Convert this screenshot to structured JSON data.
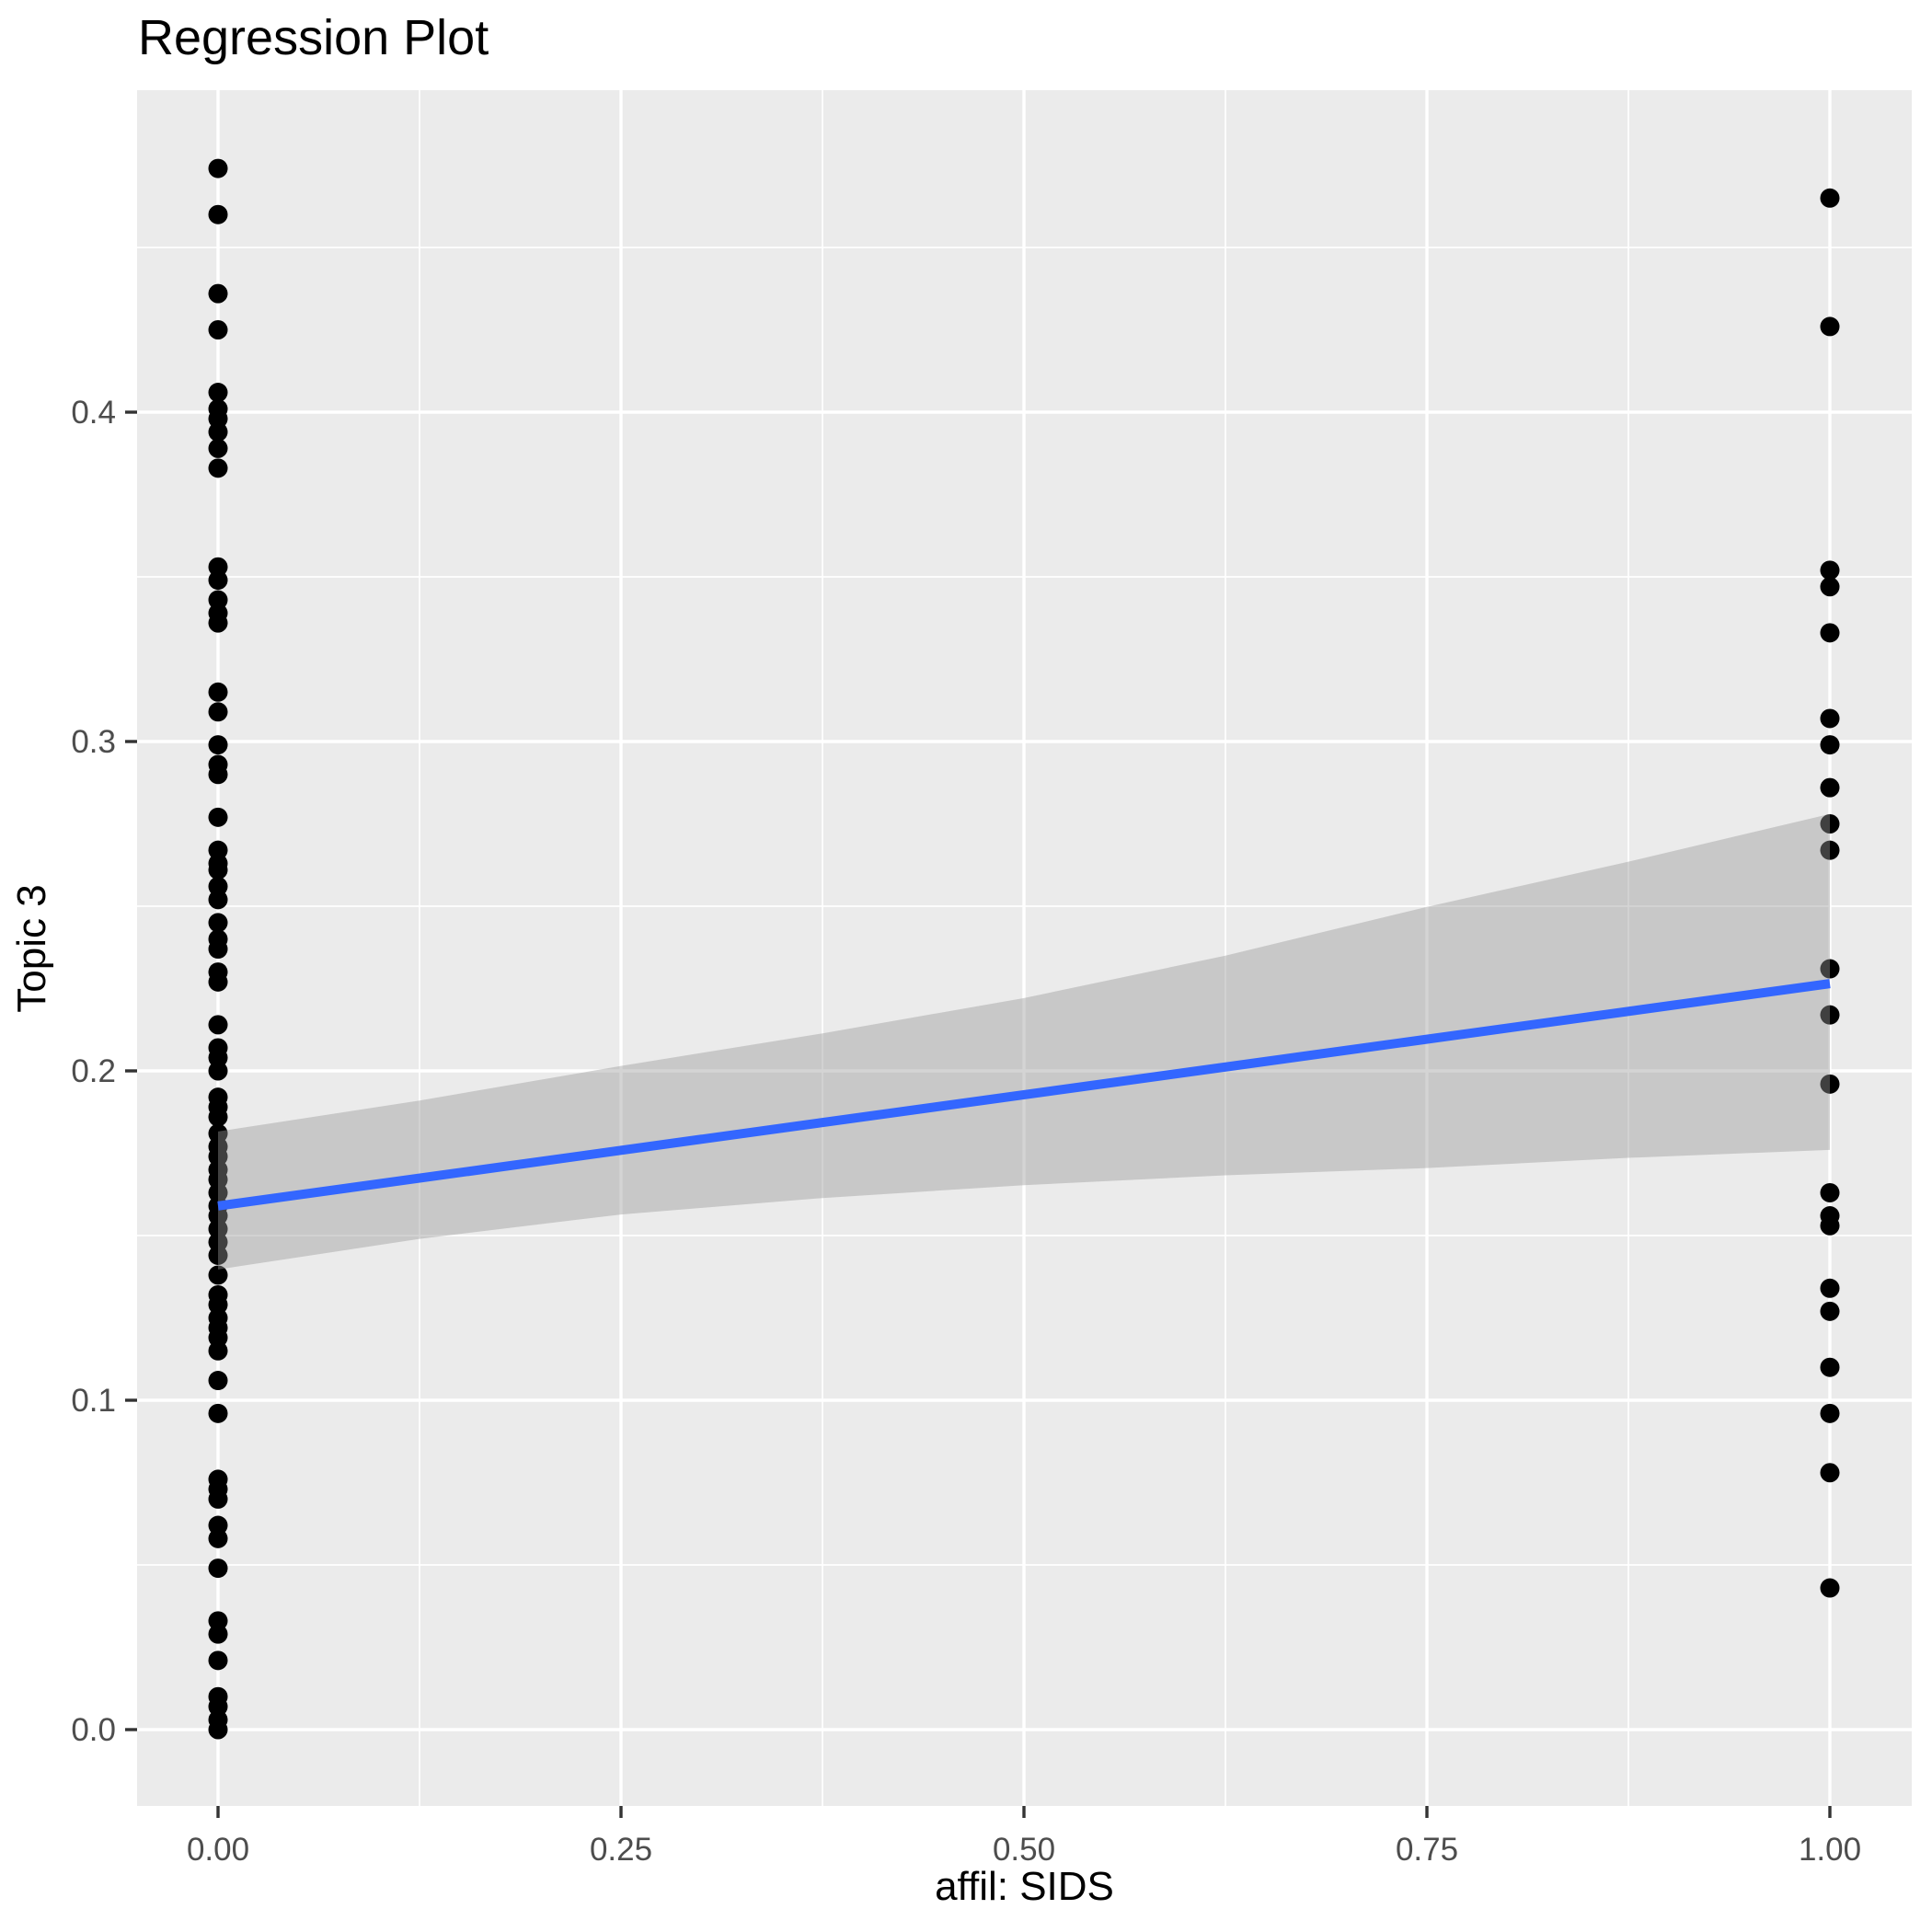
{
  "chart": {
    "title": "Regression Plot",
    "xlabel": "affil: SIDS",
    "ylabel": "Topic 3"
  },
  "chart_data": {
    "type": "scatter",
    "title": "Regression Plot",
    "xlabel": "affil: SIDS",
    "ylabel": "Topic 3",
    "grid": "on",
    "legend_position": "none",
    "xlim": [
      -0.05,
      1.05
    ],
    "ylim": [
      -0.023,
      0.498
    ],
    "x_ticks": [
      {
        "value": 0.0,
        "label": "0.00"
      },
      {
        "value": 0.25,
        "label": "0.25"
      },
      {
        "value": 0.5,
        "label": "0.50"
      },
      {
        "value": 0.75,
        "label": "0.75"
      },
      {
        "value": 1.0,
        "label": "1.00"
      }
    ],
    "y_ticks": [
      {
        "value": 0.0,
        "label": "0.0"
      },
      {
        "value": 0.1,
        "label": "0.1"
      },
      {
        "value": 0.2,
        "label": "0.2"
      },
      {
        "value": 0.3,
        "label": "0.3"
      },
      {
        "value": 0.4,
        "label": "0.4"
      }
    ],
    "x_minor": [
      0.125,
      0.375,
      0.625,
      0.875
    ],
    "y_minor": [
      0.05,
      0.15,
      0.25,
      0.35,
      0.45
    ],
    "series": [
      {
        "name": "observations at affil=0",
        "x": 0,
        "values": [
          0.474,
          0.46,
          0.436,
          0.425,
          0.406,
          0.401,
          0.398,
          0.394,
          0.389,
          0.383,
          0.353,
          0.349,
          0.343,
          0.339,
          0.336,
          0.315,
          0.309,
          0.299,
          0.293,
          0.29,
          0.277,
          0.267,
          0.263,
          0.261,
          0.256,
          0.252,
          0.245,
          0.24,
          0.237,
          0.23,
          0.227,
          0.214,
          0.207,
          0.204,
          0.2,
          0.192,
          0.189,
          0.186,
          0.181,
          0.177,
          0.174,
          0.17,
          0.167,
          0.163,
          0.159,
          0.156,
          0.152,
          0.148,
          0.144,
          0.138,
          0.132,
          0.129,
          0.125,
          0.122,
          0.119,
          0.115,
          0.106,
          0.096,
          0.076,
          0.073,
          0.07,
          0.062,
          0.058,
          0.049,
          0.033,
          0.029,
          0.021,
          0.01,
          0.007,
          0.003,
          0.0
        ]
      },
      {
        "name": "observations at affil=1",
        "x": 1,
        "values": [
          0.465,
          0.426,
          0.352,
          0.347,
          0.333,
          0.307,
          0.299,
          0.286,
          0.275,
          0.267,
          0.231,
          0.217,
          0.196,
          0.163,
          0.156,
          0.153,
          0.134,
          0.127,
          0.11,
          0.096,
          0.078,
          0.043
        ]
      }
    ],
    "regression_line": {
      "x": [
        0,
        1
      ],
      "y": [
        0.159,
        0.2265
      ],
      "color": "#3366FF"
    },
    "confidence_band": {
      "upper": [
        [
          0,
          0.1816
        ],
        [
          0.125,
          0.191
        ],
        [
          0.25,
          0.2015
        ],
        [
          0.375,
          0.2114
        ],
        [
          0.5,
          0.2221
        ],
        [
          0.625,
          0.235
        ],
        [
          0.75,
          0.2498
        ],
        [
          0.875,
          0.2635
        ],
        [
          1,
          0.278
        ]
      ],
      "lower": [
        [
          0,
          0.1397
        ],
        [
          0.125,
          0.149
        ],
        [
          0.25,
          0.1564
        ],
        [
          0.375,
          0.1614
        ],
        [
          0.5,
          0.1653
        ],
        [
          0.625,
          0.1683
        ],
        [
          0.75,
          0.1705
        ],
        [
          0.875,
          0.1736
        ],
        [
          1,
          0.176
        ]
      ],
      "fill": "#999999",
      "opacity": 0.42
    },
    "colors": {
      "panel_bg": "#EBEBEB",
      "grid": "#FFFFFF",
      "point": "#000000",
      "tick_label": "#4D4D4D",
      "tick_mark": "#333333",
      "title": "#000000"
    }
  }
}
